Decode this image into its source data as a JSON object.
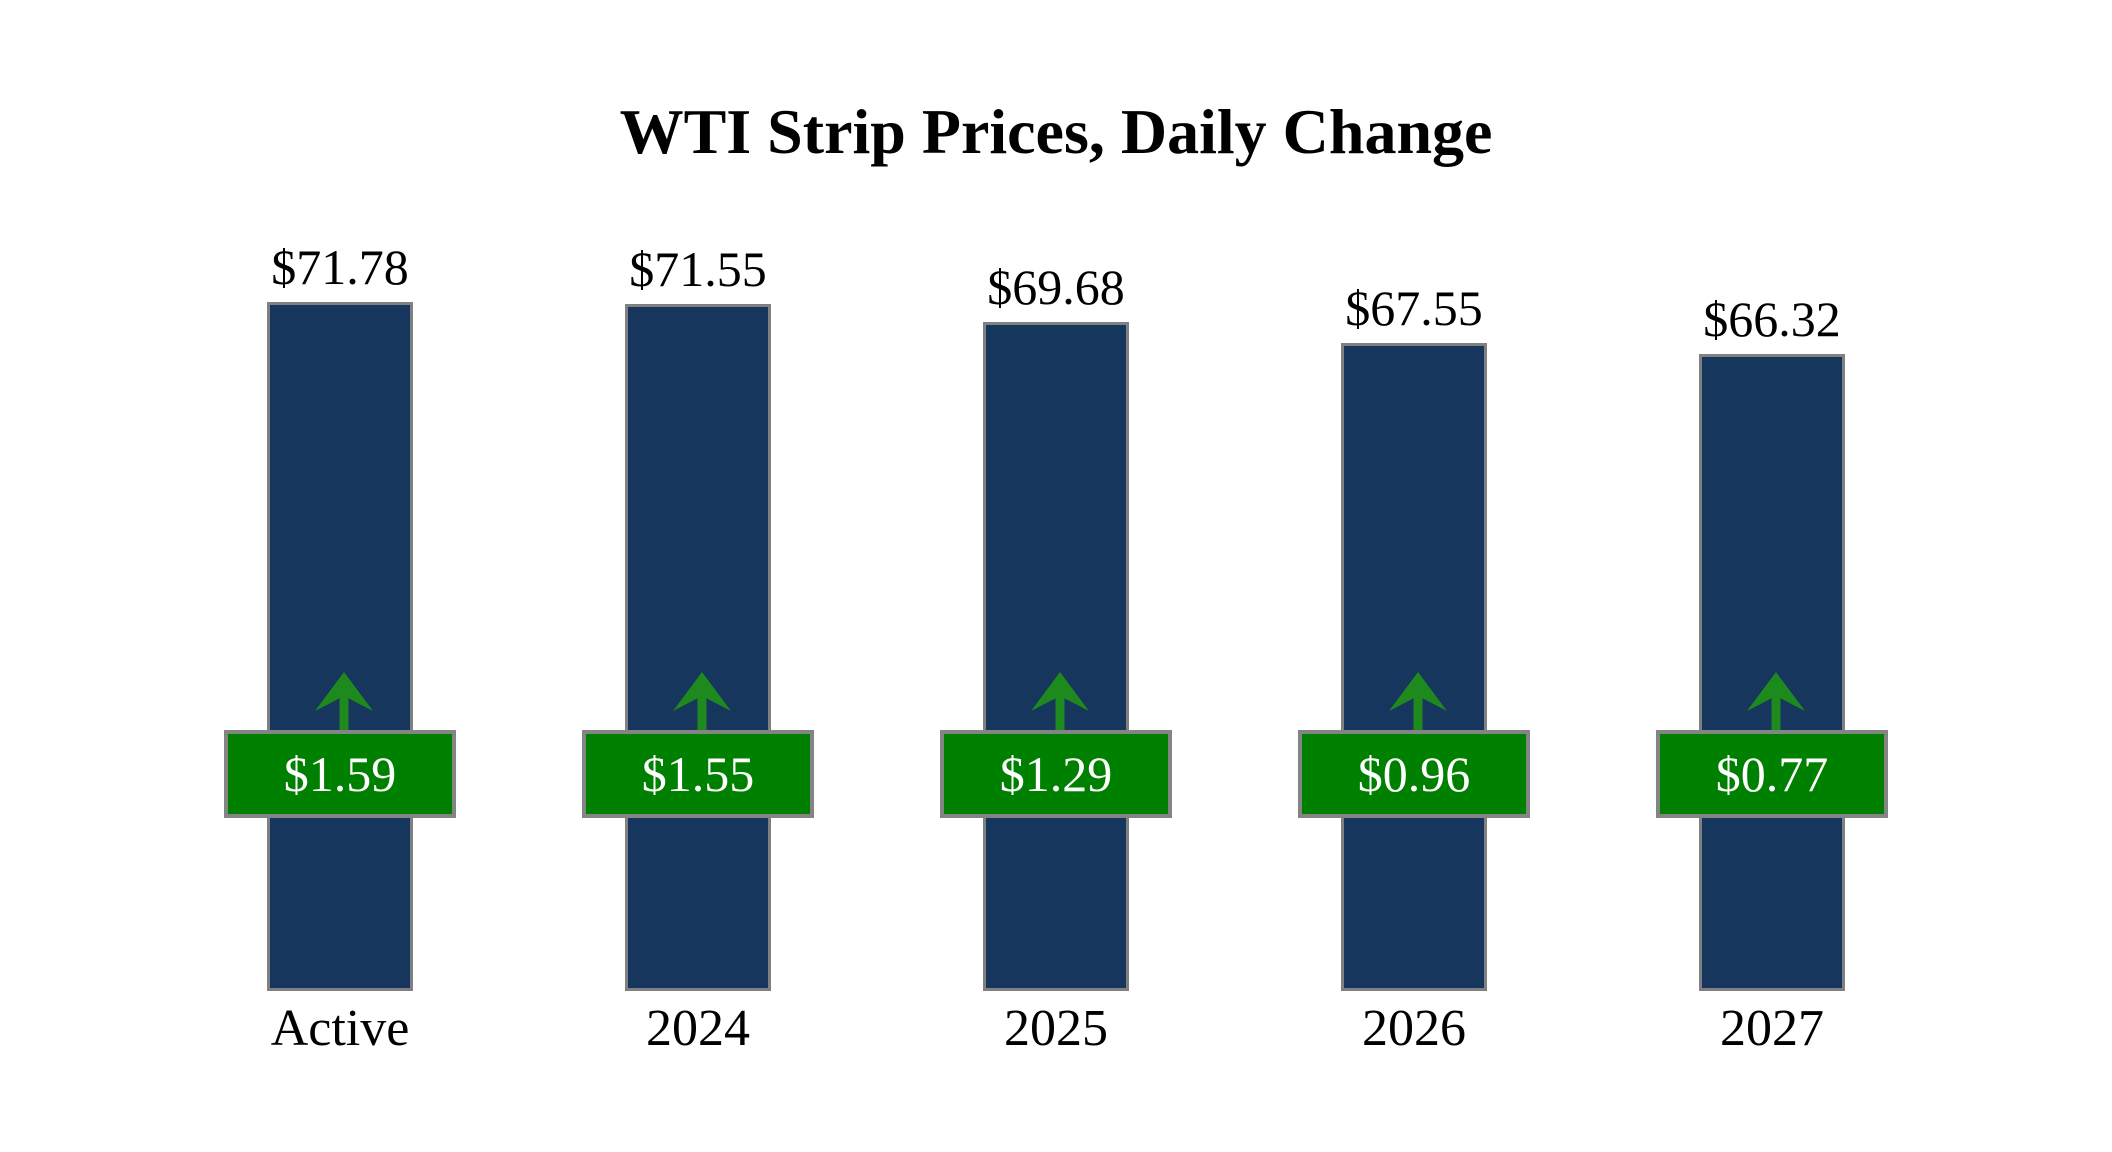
{
  "title": "WTI Strip Prices, Daily Change",
  "chart_data": {
    "type": "bar",
    "title": "WTI Strip Prices, Daily Change",
    "categories": [
      "Active",
      "2024",
      "2025",
      "2026",
      "2027"
    ],
    "series": [
      {
        "name": "Strip Price",
        "values": [
          71.78,
          71.55,
          69.68,
          67.55,
          66.32
        ],
        "labels": [
          "$71.78",
          "$71.55",
          "$69.68",
          "$67.55",
          "$66.32"
        ]
      },
      {
        "name": "Daily Change",
        "values": [
          1.59,
          1.55,
          1.29,
          0.96,
          0.77
        ],
        "labels": [
          "$1.59",
          "$1.55",
          "$1.29",
          "$0.96",
          "$0.77"
        ]
      }
    ],
    "xlabel": "",
    "ylabel": "",
    "ylim": [
      0,
      75
    ],
    "grid": false,
    "axes_visible": false,
    "legend": "none",
    "colors": {
      "bar_fill": "#17365d",
      "bar_border": "#808080",
      "change_box_fill": "#008000",
      "change_box_border": "#848484",
      "change_text": "#ffffff",
      "arrow": "#1e8a1e",
      "label_text": "#000000",
      "background": "#ffffff"
    }
  }
}
